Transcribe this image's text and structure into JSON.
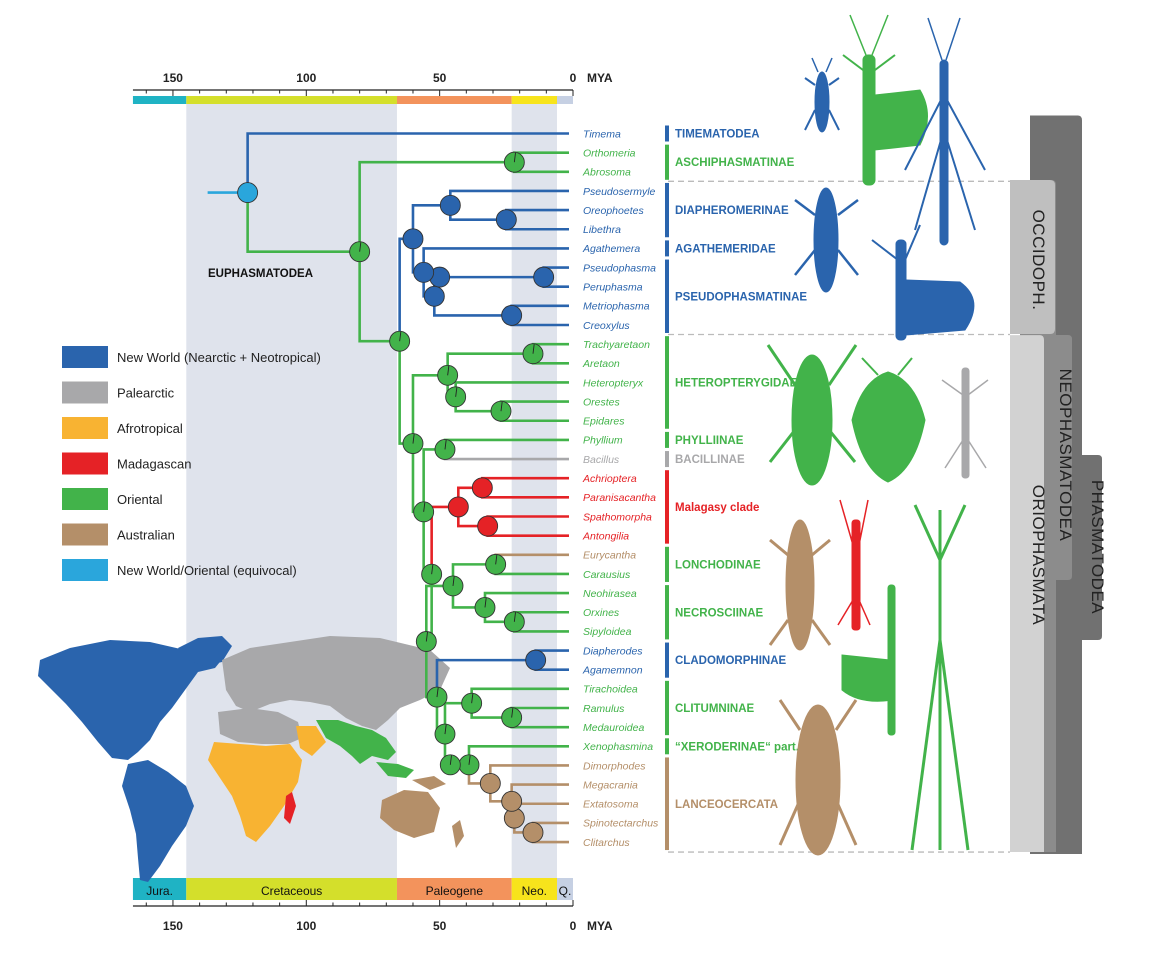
{
  "axis": {
    "unit": "MYA",
    "ticks": [
      "150",
      "100",
      "50",
      "0"
    ],
    "tick_values": [
      150,
      100,
      50,
      0
    ]
  },
  "periods": [
    {
      "label": "Jura.",
      "start": 165,
      "end": 145,
      "color": "#1fb3c4"
    },
    {
      "label": "Cretaceous",
      "start": 145,
      "end": 66,
      "color": "#d4df2b"
    },
    {
      "label": "Paleogene",
      "start": 66,
      "end": 23,
      "color": "#f3935c"
    },
    {
      "label": "Neo.",
      "start": 23,
      "end": 6,
      "color": "#f7e41c"
    },
    {
      "label": "Q.",
      "start": 6,
      "end": 0,
      "color": "#c6d0e3"
    }
  ],
  "root_label": "EUPHASMATODEA",
  "colors": {
    "newworld": "#2a64ad",
    "palearctic": "#a8a8aa",
    "afrotropical": "#f8b332",
    "madagascan": "#e52226",
    "oriental": "#42b34a",
    "australian": "#b48f69",
    "equivocal": "#2aa6dc"
  },
  "legend": [
    {
      "label": "New World (Nearctic + Neotropical)",
      "color": "#2a64ad"
    },
    {
      "label": "Palearctic",
      "color": "#a8a8aa"
    },
    {
      "label": "Afrotropical",
      "color": "#f8b332"
    },
    {
      "label": "Madagascan",
      "color": "#e52226"
    },
    {
      "label": "Oriental",
      "color": "#42b34a"
    },
    {
      "label": "Australian",
      "color": "#b48f69"
    },
    {
      "label": "New World/Oriental (equivocal)",
      "color": "#2aa6dc"
    }
  ],
  "taxa": [
    {
      "name": "Timema",
      "region": "newworld"
    },
    {
      "name": "Orthomeria",
      "region": "oriental"
    },
    {
      "name": "Abrosoma",
      "region": "oriental"
    },
    {
      "name": "Pseudosermyle",
      "region": "newworld"
    },
    {
      "name": "Oreophoetes",
      "region": "newworld"
    },
    {
      "name": "Libethra",
      "region": "newworld"
    },
    {
      "name": "Agathemera",
      "region": "newworld"
    },
    {
      "name": "Pseudophasma",
      "region": "newworld"
    },
    {
      "name": "Peruphasma",
      "region": "newworld"
    },
    {
      "name": "Metriophasma",
      "region": "newworld"
    },
    {
      "name": "Creoxylus",
      "region": "newworld"
    },
    {
      "name": "Trachyaretaon",
      "region": "oriental"
    },
    {
      "name": "Aretaon",
      "region": "oriental"
    },
    {
      "name": "Heteropteryx",
      "region": "oriental"
    },
    {
      "name": "Orestes",
      "region": "oriental"
    },
    {
      "name": "Epidares",
      "region": "oriental"
    },
    {
      "name": "Phyllium",
      "region": "oriental"
    },
    {
      "name": "Bacillus",
      "region": "palearctic"
    },
    {
      "name": "Achrioptera",
      "region": "madagascan"
    },
    {
      "name": "Paranisacantha",
      "region": "madagascan"
    },
    {
      "name": "Spathomorpha",
      "region": "madagascan"
    },
    {
      "name": "Antongilia",
      "region": "madagascan"
    },
    {
      "name": "Eurycantha",
      "region": "australian"
    },
    {
      "name": "Carausius",
      "region": "oriental"
    },
    {
      "name": "Neohirasea",
      "region": "oriental"
    },
    {
      "name": "Orxines",
      "region": "oriental"
    },
    {
      "name": "Sipyloidea",
      "region": "oriental"
    },
    {
      "name": "Diapherodes",
      "region": "newworld"
    },
    {
      "name": "Agamemnon",
      "region": "newworld"
    },
    {
      "name": "Tirachoidea",
      "region": "oriental"
    },
    {
      "name": "Ramulus",
      "region": "oriental"
    },
    {
      "name": "Medauroidea",
      "region": "oriental"
    },
    {
      "name": "Xenophasmina",
      "region": "oriental"
    },
    {
      "name": "Dimorphodes",
      "region": "australian"
    },
    {
      "name": "Megacrania",
      "region": "australian"
    },
    {
      "name": "Extatosoma",
      "region": "australian"
    },
    {
      "name": "Spinotectarchus",
      "region": "australian"
    },
    {
      "name": "Clitarchus",
      "region": "australian"
    }
  ],
  "clades": [
    {
      "label": "TIMEMATODEA",
      "first": 0,
      "last": 0,
      "region": "newworld"
    },
    {
      "label": "ASCHIPHASMATINAE",
      "first": 1,
      "last": 2,
      "region": "oriental"
    },
    {
      "label": "DIAPHEROMERINAE",
      "first": 3,
      "last": 5,
      "region": "newworld"
    },
    {
      "label": "AGATHEMERIDAE",
      "first": 6,
      "last": 6,
      "region": "newworld"
    },
    {
      "label": "PSEUDOPHASMATINAE",
      "first": 7,
      "last": 10,
      "region": "newworld"
    },
    {
      "label": "HETEROPTERYGIDAE",
      "first": 11,
      "last": 15,
      "region": "oriental"
    },
    {
      "label": "PHYLLIINAE",
      "first": 16,
      "last": 16,
      "region": "oriental"
    },
    {
      "label": "BACILLINAE",
      "first": 17,
      "last": 17,
      "region": "palearctic"
    },
    {
      "label": "Malagasy clade",
      "first": 18,
      "last": 21,
      "region": "madagascan"
    },
    {
      "label": "LONCHODINAE",
      "first": 22,
      "last": 23,
      "region": "oriental"
    },
    {
      "label": "NECROSCIINAE",
      "first": 24,
      "last": 26,
      "region": "oriental"
    },
    {
      "label": "CLADOMORPHINAE",
      "first": 27,
      "last": 28,
      "region": "newworld"
    },
    {
      "label": "CLITUMNINAE",
      "first": 29,
      "last": 31,
      "region": "oriental"
    },
    {
      "label": "“XERODERINAE“ part.",
      "first": 32,
      "last": 32,
      "region": "oriental"
    },
    {
      "label": "LANCEOCERCATA",
      "first": 33,
      "last": 37,
      "region": "australian"
    }
  ],
  "groups": [
    {
      "label": "OCCIDOPH."
    },
    {
      "label": "NEOPHASMATODEA"
    },
    {
      "label": "ORIOPHASMATA"
    },
    {
      "label": "PHASMATODEA"
    }
  ],
  "tree": {
    "root": {
      "age": 122,
      "region": "equivocal",
      "stem_age": 137,
      "stem_region": "equivocal"
    },
    "nodes": [
      {
        "id": "eup",
        "age": 80,
        "region": "oriental",
        "parent": "root",
        "pie": true
      },
      {
        "id": "asc",
        "age": 22,
        "region": "oriental",
        "parent": "eup",
        "pie": true
      },
      {
        "id": "neo",
        "age": 65,
        "region": "oriental",
        "parent": "eup",
        "pie": true
      },
      {
        "id": "occ",
        "age": 60,
        "region": "newworld",
        "parent": "neo"
      },
      {
        "id": "dia",
        "age": 46,
        "region": "newworld",
        "parent": "occ"
      },
      {
        "id": "dia2",
        "age": 25,
        "region": "newworld",
        "parent": "dia"
      },
      {
        "id": "ap",
        "age": 56,
        "region": "newworld",
        "parent": "occ"
      },
      {
        "id": "pse",
        "age": 52,
        "region": "newworld",
        "parent": "ap"
      },
      {
        "id": "pse1",
        "age": 50,
        "region": "newworld",
        "parent": "pse"
      },
      {
        "id": "pse2",
        "age": 11,
        "region": "newworld",
        "parent": "pse1"
      },
      {
        "id": "mc",
        "age": 23,
        "region": "newworld",
        "parent": "pse"
      },
      {
        "id": "ori",
        "age": 60,
        "region": "oriental",
        "parent": "neo",
        "pie": true
      },
      {
        "id": "het",
        "age": 47,
        "region": "oriental",
        "parent": "ori",
        "pie": true
      },
      {
        "id": "tra",
        "age": 15,
        "region": "oriental",
        "parent": "het",
        "pie": true
      },
      {
        "id": "het2",
        "age": 44,
        "region": "oriental",
        "parent": "het",
        "pie": true
      },
      {
        "id": "ore",
        "age": 27,
        "region": "oriental",
        "parent": "het2",
        "pie": true
      },
      {
        "id": "rest",
        "age": 56,
        "region": "oriental",
        "parent": "ori",
        "pie": true
      },
      {
        "id": "pb",
        "age": 48,
        "region": "oriental",
        "parent": "rest",
        "pie": true
      },
      {
        "id": "rest2",
        "age": 53,
        "region": "oriental",
        "parent": "rest",
        "pie": true
      },
      {
        "id": "mal",
        "age": 43,
        "region": "madagascan",
        "parent": "rest2"
      },
      {
        "id": "mal1",
        "age": 34,
        "region": "madagascan",
        "parent": "mal"
      },
      {
        "id": "mal2",
        "age": 32,
        "region": "madagascan",
        "parent": "mal"
      },
      {
        "id": "rest3",
        "age": 55,
        "region": "oriental",
        "parent": "rest2",
        "pie": true
      },
      {
        "id": "ln",
        "age": 45,
        "region": "oriental",
        "parent": "rest3",
        "pie": true
      },
      {
        "id": "lon",
        "age": 29,
        "region": "oriental",
        "parent": "ln",
        "pie": true
      },
      {
        "id": "nec",
        "age": 33,
        "region": "oriental",
        "parent": "ln",
        "pie": true
      },
      {
        "id": "nec2",
        "age": 22,
        "region": "oriental",
        "parent": "nec",
        "pie": true
      },
      {
        "id": "rest4",
        "age": 51,
        "region": "oriental",
        "parent": "rest3",
        "pie": true
      },
      {
        "id": "cla",
        "age": 14,
        "region": "newworld",
        "parent": "rest4"
      },
      {
        "id": "rest5",
        "age": 48,
        "region": "oriental",
        "parent": "rest4",
        "pie": true
      },
      {
        "id": "clit",
        "age": 38,
        "region": "oriental",
        "parent": "rest5",
        "pie": true
      },
      {
        "id": "clit2",
        "age": 23,
        "region": "oriental",
        "parent": "clit",
        "pie": true
      },
      {
        "id": "rest6",
        "age": 46,
        "region": "oriental",
        "parent": "rest5",
        "pie": true
      },
      {
        "id": "xl",
        "age": 39,
        "region": "oriental",
        "parent": "rest6",
        "pie": true
      },
      {
        "id": "lan",
        "age": 31,
        "region": "australian",
        "parent": "xl"
      },
      {
        "id": "lan2",
        "age": 23,
        "region": "australian",
        "parent": "lan"
      },
      {
        "id": "lan3",
        "age": 22,
        "region": "australian",
        "parent": "lan2"
      },
      {
        "id": "lan4",
        "age": 15,
        "region": "australian",
        "parent": "lan3"
      }
    ],
    "tips": [
      {
        "taxon": 0,
        "parent": "root",
        "region": "newworld"
      },
      {
        "taxon": 1,
        "parent": "asc",
        "region": "oriental"
      },
      {
        "taxon": 2,
        "parent": "asc",
        "region": "oriental"
      },
      {
        "taxon": 3,
        "parent": "dia",
        "region": "newworld"
      },
      {
        "taxon": 4,
        "parent": "dia2",
        "region": "newworld"
      },
      {
        "taxon": 5,
        "parent": "dia2",
        "region": "newworld"
      },
      {
        "taxon": 6,
        "parent": "ap",
        "region": "newworld"
      },
      {
        "taxon": 7,
        "parent": "pse2",
        "region": "newworld"
      },
      {
        "taxon": 8,
        "parent": "pse2",
        "region": "newworld"
      },
      {
        "taxon": 9,
        "parent": "mc",
        "region": "newworld"
      },
      {
        "taxon": 10,
        "parent": "mc",
        "region": "newworld"
      },
      {
        "taxon": 11,
        "parent": "tra",
        "region": "oriental"
      },
      {
        "taxon": 12,
        "parent": "tra",
        "region": "oriental"
      },
      {
        "taxon": 13,
        "parent": "het2",
        "region": "oriental"
      },
      {
        "taxon": 14,
        "parent": "ore",
        "region": "oriental"
      },
      {
        "taxon": 15,
        "parent": "ore",
        "region": "oriental"
      },
      {
        "taxon": 16,
        "parent": "pb",
        "region": "oriental"
      },
      {
        "taxon": 17,
        "parent": "pb",
        "region": "palearctic"
      },
      {
        "taxon": 18,
        "parent": "mal1",
        "region": "madagascan"
      },
      {
        "taxon": 19,
        "parent": "mal1",
        "region": "madagascan"
      },
      {
        "taxon": 20,
        "parent": "mal2",
        "region": "madagascan"
      },
      {
        "taxon": 21,
        "parent": "mal2",
        "region": "madagascan"
      },
      {
        "taxon": 22,
        "parent": "lon",
        "region": "australian"
      },
      {
        "taxon": 23,
        "parent": "lon",
        "region": "oriental"
      },
      {
        "taxon": 24,
        "parent": "nec",
        "region": "oriental"
      },
      {
        "taxon": 25,
        "parent": "nec2",
        "region": "oriental"
      },
      {
        "taxon": 26,
        "parent": "nec2",
        "region": "oriental"
      },
      {
        "taxon": 27,
        "parent": "cla",
        "region": "newworld"
      },
      {
        "taxon": 28,
        "parent": "cla",
        "region": "newworld"
      },
      {
        "taxon": 29,
        "parent": "clit",
        "region": "oriental"
      },
      {
        "taxon": 30,
        "parent": "clit2",
        "region": "oriental"
      },
      {
        "taxon": 31,
        "parent": "clit2",
        "region": "oriental"
      },
      {
        "taxon": 32,
        "parent": "xl",
        "region": "oriental"
      },
      {
        "taxon": 33,
        "parent": "lan",
        "region": "australian"
      },
      {
        "taxon": 34,
        "parent": "lan2",
        "region": "australian"
      },
      {
        "taxon": 35,
        "parent": "lan3",
        "region": "australian"
      },
      {
        "taxon": 36,
        "parent": "lan4",
        "region": "australian"
      },
      {
        "taxon": 37,
        "parent": "lan4",
        "region": "australian"
      }
    ]
  }
}
